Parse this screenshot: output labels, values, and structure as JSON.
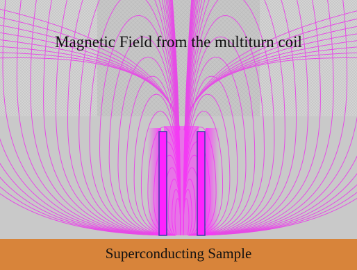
{
  "title": "Magnetic Field from the multiturn coil",
  "sample_label": "Superconducting Sample",
  "colors": {
    "field_lines": "#e64be6",
    "coil_core": "#ff1aff",
    "coil_outline": "#3333aa",
    "mesh_fine": "#d2d2d2",
    "mesh_center": "#c4c4c4",
    "background_lower": "#c8c8c8",
    "sample": "#d9843c"
  }
}
